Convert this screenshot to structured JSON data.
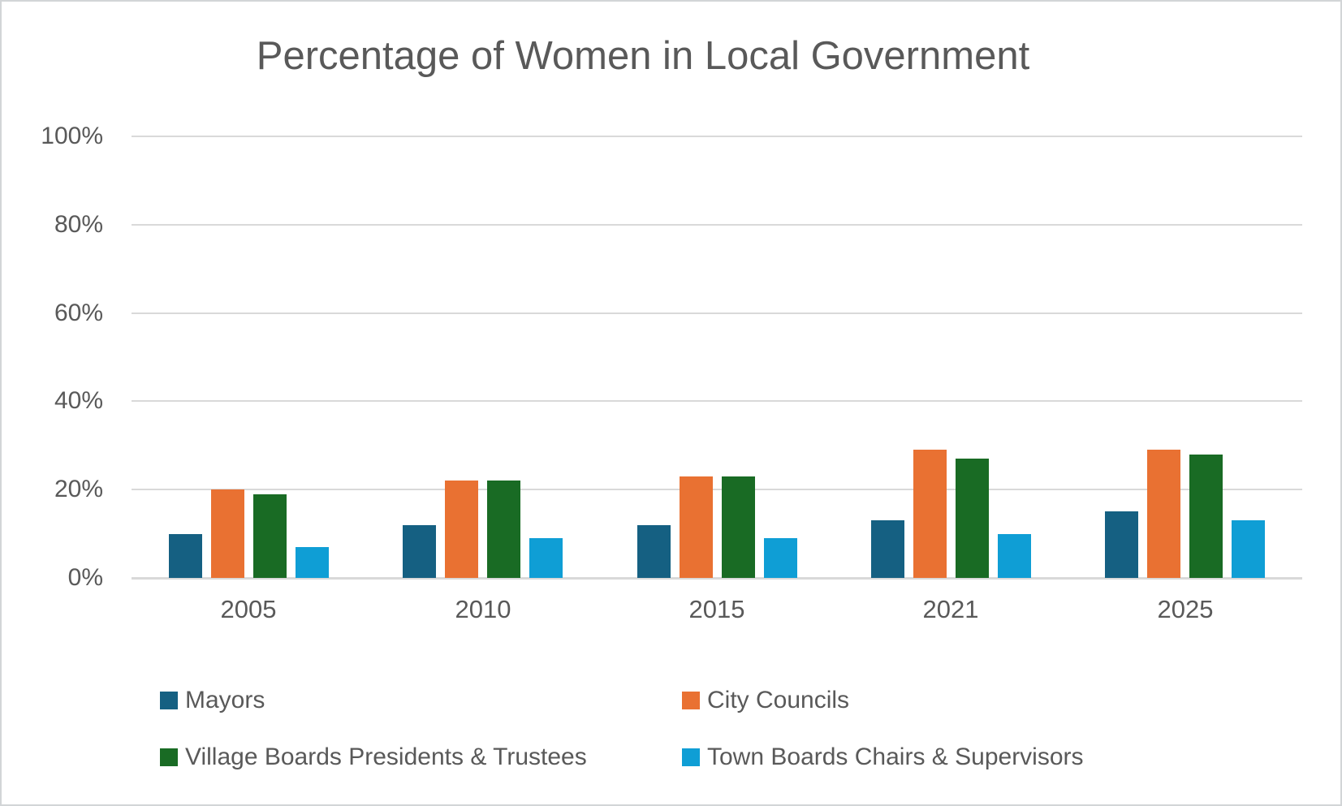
{
  "chart_data": {
    "type": "bar",
    "title": "Percentage of Women in Local Government",
    "categories": [
      "2005",
      "2010",
      "2015",
      "2021",
      "2025"
    ],
    "series": [
      {
        "name": "Mayors",
        "color": "#156082",
        "values": [
          10,
          12,
          12,
          13,
          15
        ]
      },
      {
        "name": "City Councils",
        "color": "#E97132",
        "values": [
          20,
          22,
          23,
          29,
          29
        ]
      },
      {
        "name": "Village Boards Presidents & Trustees",
        "color": "#196B24",
        "values": [
          19,
          22,
          23,
          27,
          28
        ]
      },
      {
        "name": "Town Boards Chairs & Supervisors",
        "color": "#0F9ED5",
        "values": [
          7,
          9,
          9,
          10,
          13
        ]
      }
    ],
    "y_axis": {
      "tick_labels": [
        "0%",
        "20%",
        "40%",
        "60%",
        "80%",
        "100%"
      ],
      "tick_values": [
        0,
        20,
        40,
        60,
        80,
        100
      ],
      "ylim": [
        0,
        100
      ],
      "gridlines": true
    },
    "legend": {
      "position": "bottom",
      "columns": 2,
      "entries": [
        "Mayors",
        "City Councils",
        "Village Boards Presidents & Trustees",
        "Town Boards Chairs & Supervisors"
      ]
    },
    "styles": {
      "text_color": "#595959",
      "gridline_color": "#D9D9D9",
      "background": "#FFFFFF",
      "border_color": "#D2D5D7"
    }
  }
}
